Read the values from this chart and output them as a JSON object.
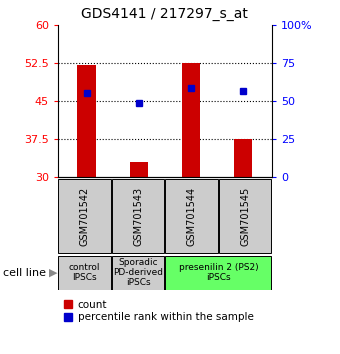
{
  "title": "GDS4141 / 217297_s_at",
  "samples": [
    "GSM701542",
    "GSM701543",
    "GSM701544",
    "GSM701545"
  ],
  "bar_bottoms": [
    30,
    30,
    30,
    30
  ],
  "bar_tops": [
    52.0,
    33.0,
    52.5,
    37.5
  ],
  "blue_y": [
    46.5,
    44.5,
    47.5,
    47.0
  ],
  "ylim": [
    30,
    60
  ],
  "yticks_left": [
    30,
    37.5,
    45,
    52.5,
    60
  ],
  "yticks_right": [
    0,
    25,
    50,
    75,
    100
  ],
  "ytick_labels_right": [
    "0",
    "25",
    "50",
    "75",
    "100%"
  ],
  "bar_color": "#cc0000",
  "blue_color": "#0000cc",
  "hline_y": [
    37.5,
    45,
    52.5
  ],
  "groups": [
    {
      "label": "control\nIPSCs",
      "cols": [
        0
      ],
      "color": "#cccccc"
    },
    {
      "label": "Sporadic\nPD-derived\niPSCs",
      "cols": [
        1
      ],
      "color": "#cccccc"
    },
    {
      "label": "presenilin 2 (PS2)\niPSCs",
      "cols": [
        2,
        3
      ],
      "color": "#66ff66"
    }
  ],
  "cell_line_label": "cell line",
  "legend_count": "count",
  "legend_percentile": "percentile rank within the sample",
  "bar_width": 0.35
}
